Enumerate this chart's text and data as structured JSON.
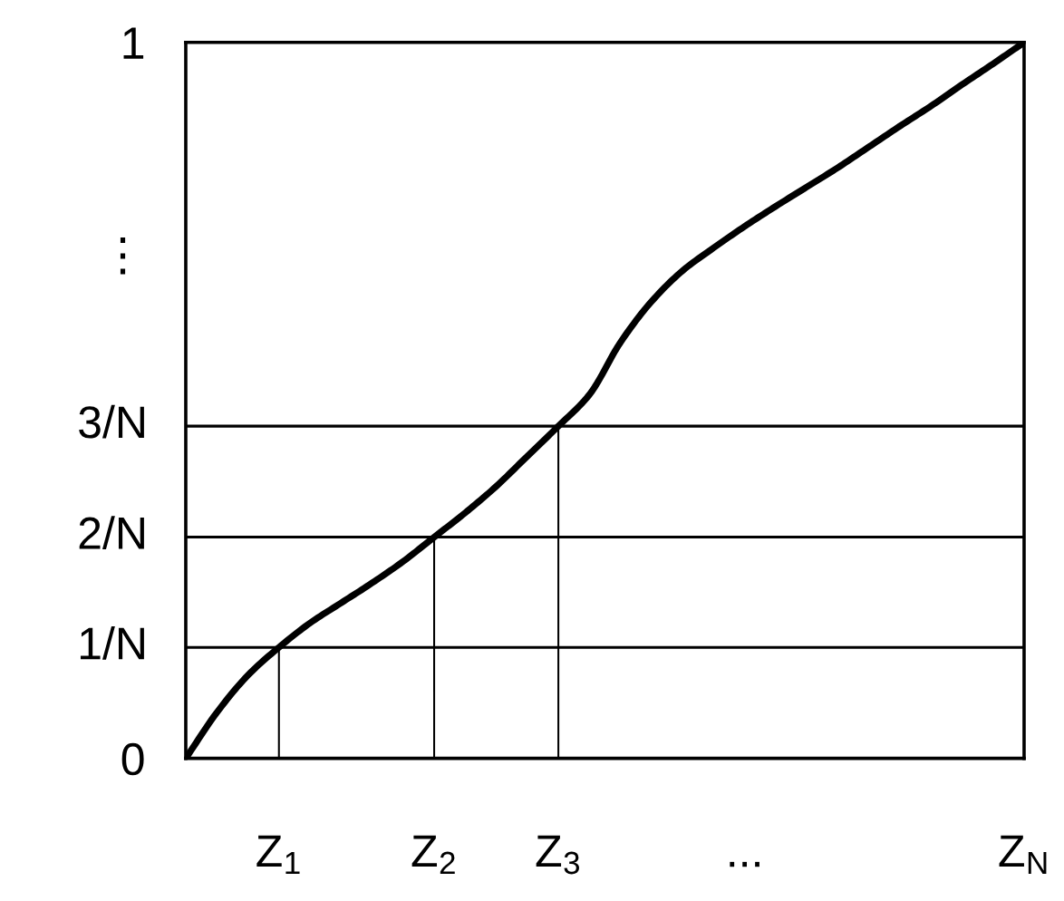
{
  "chart_data": {
    "type": "line",
    "categories": [
      null,
      null,
      null,
      "Z$_{1}$",
      null,
      null,
      null,
      null,
      "Z$_{2}$",
      null,
      null,
      null,
      "Z$_{3}$",
      null,
      null,
      null,
      null,
      null,
      "...",
      null,
      null,
      null,
      null,
      null,
      null,
      null,
      null,
      "Z$_{N}$"
    ],
    "ylim": [
      0,
      1
    ],
    "yticks": [
      0,
      {
        "value": 0.705,
        "label": "⋮"
      },
      1
    ],
    "grid": false,
    "ref_lines": [
      {
        "axis": "y",
        "value": 0.155,
        "label": "1/N",
        "color": "#000000"
      },
      {
        "axis": "y",
        "value": 0.309,
        "label": "2/N",
        "color": "#000000"
      },
      {
        "axis": "y",
        "value": 0.464,
        "label": "3/N",
        "color": "#000000"
      }
    ],
    "series": [
      {
        "color": "#000000",
        "values": [
          0,
          0.064,
          0.116,
          0.155,
          0.189,
          0.217,
          0.245,
          0.275,
          0.309,
          0.343,
          0.38,
          0.422,
          0.464,
          0.508,
          0.581,
          0.638,
          0.681,
          0.713,
          0.743,
          0.771,
          0.798,
          0.825,
          0.854,
          0.883,
          0.911,
          0.941,
          0.97,
          1
        ]
      },
      {
        "type": "bar",
        "color": "#000000",
        "values": [
          null,
          null,
          null,
          0.155,
          null,
          null,
          null,
          null,
          0.309,
          null,
          null,
          null,
          0.464,
          null,
          null,
          null,
          null,
          null,
          null,
          null,
          null,
          null,
          null,
          null,
          null,
          null,
          null,
          null
        ]
      }
    ]
  }
}
